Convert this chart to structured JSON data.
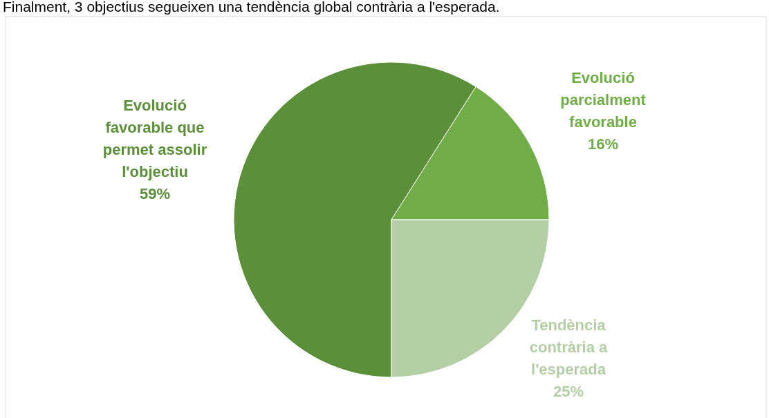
{
  "chart_data": {
    "type": "pie",
    "annotations": [
      "Finalment, 3 objectius segueixen una tendència global contrària a l'esperada."
    ],
    "categories": [
      "Evolució favorable que permet assolir l'objectiu",
      "Evolució parcialment favorable",
      "Tendència contrària a l'esperada"
    ],
    "values": [
      59,
      16,
      25
    ],
    "colors": [
      "#5b8f3a",
      "#70ad47",
      "#b4cfa5"
    ],
    "value_labels": [
      "59%",
      "16%",
      "25%"
    ]
  }
}
